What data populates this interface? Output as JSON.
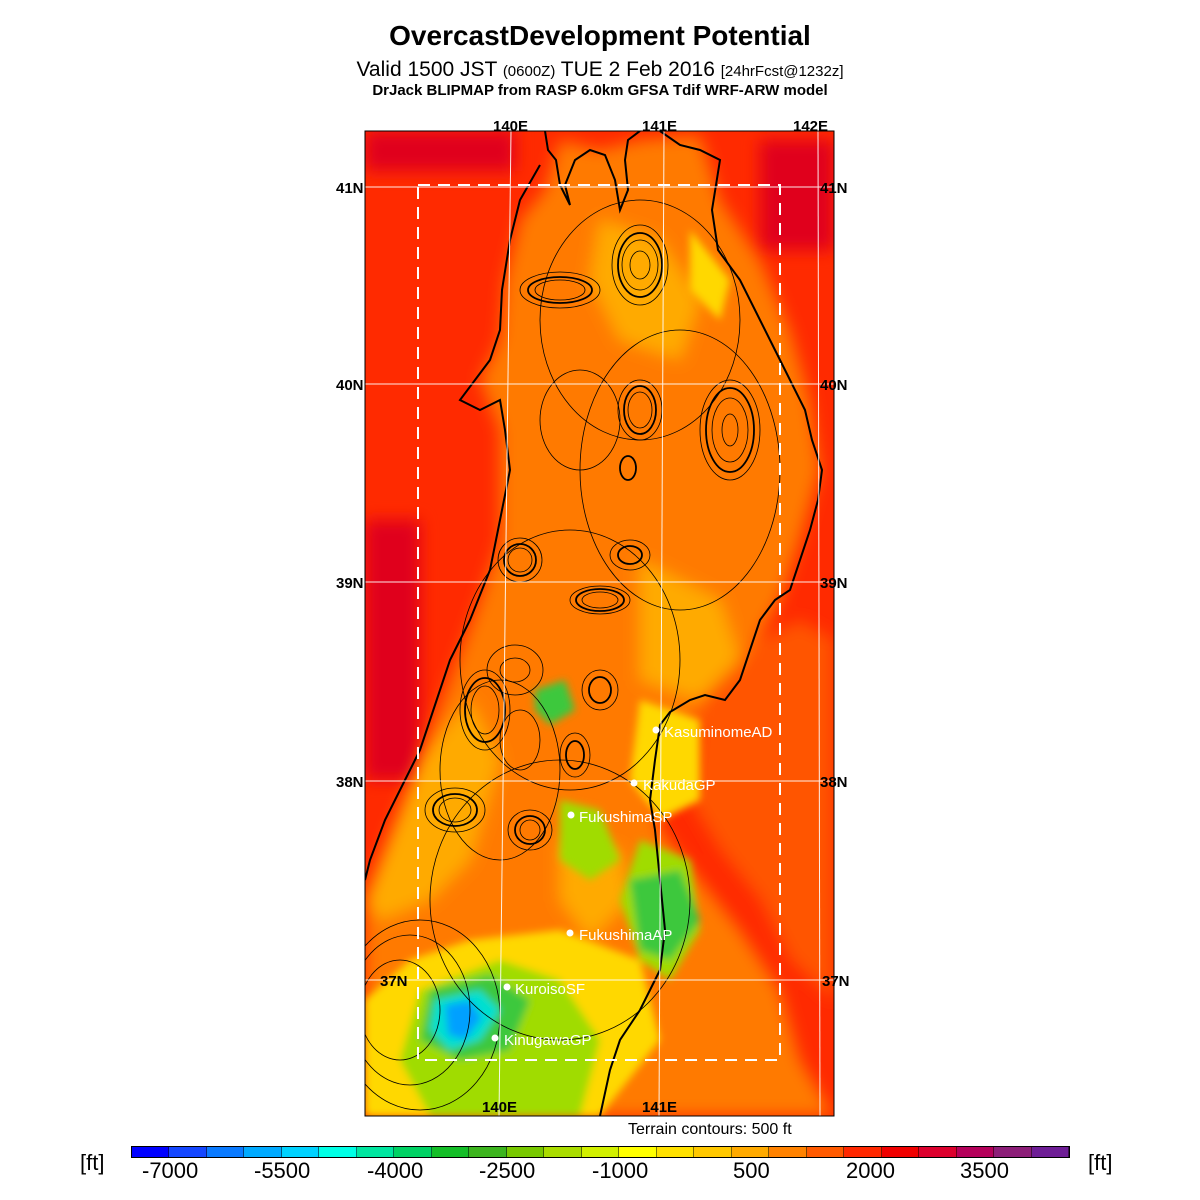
{
  "title": "OvercastDevelopment Potential",
  "subtitle": {
    "main_a": "Valid 1500 JST ",
    "utc": "(0600Z)",
    "main_b": " TUE 2 Feb 2016 ",
    "fcst": "[24hrFcst@1232z]"
  },
  "model": "DrJack BLIPMAP from RASP 6.0km GFSA Tdif WRF-ARW model",
  "terrain_note": "Terrain contours: 500 ft",
  "map": {
    "lon_labels_top": [
      "140E",
      "141E",
      "142E"
    ],
    "lon_labels_bottom": [
      "140E",
      "141E"
    ],
    "lat_labels_left": [
      "41N",
      "40N",
      "39N",
      "38N",
      "37N"
    ],
    "lat_labels_right": [
      "41N",
      "40N",
      "39N",
      "38N",
      "37N"
    ],
    "sites": [
      {
        "name": "KasuminomeAD"
      },
      {
        "name": "KakudaGP"
      },
      {
        "name": "FukushimaSP"
      },
      {
        "name": "FukushimaAP"
      },
      {
        "name": "KuroisoSF"
      },
      {
        "name": "KinugawaGP"
      }
    ],
    "palette": {
      "sea": "#ff2a00",
      "sea_deep": "#e0001e",
      "land": "#ff7a00",
      "land_warm": "#ff5500",
      "land_mid": "#ffaa00",
      "yellow": "#ffd800",
      "lime": "#a0dc00",
      "green": "#3cc83c",
      "cyan": "#00e0d0",
      "blue": "#00a0ff",
      "grid": "#ffffff",
      "coast": "#000000"
    }
  },
  "colorbar": {
    "unit_left": "[ft]",
    "unit_right": "[ft]",
    "labels": [
      "-7000",
      "-5500",
      "-4000",
      "-2500",
      "-1000",
      "500",
      "2000",
      "3500"
    ],
    "colors": [
      "#0000ff",
      "#1446ff",
      "#0a7aff",
      "#00aaff",
      "#00d2ff",
      "#00ffe6",
      "#00e6a0",
      "#00d264",
      "#14be28",
      "#3cb41e",
      "#78c800",
      "#aadc00",
      "#d2f000",
      "#ffff00",
      "#ffe100",
      "#ffc800",
      "#ffaa00",
      "#ff8200",
      "#ff5a00",
      "#ff2800",
      "#f00000",
      "#dc002d",
      "#b4005a",
      "#8c1e78",
      "#6e1e96"
    ]
  }
}
